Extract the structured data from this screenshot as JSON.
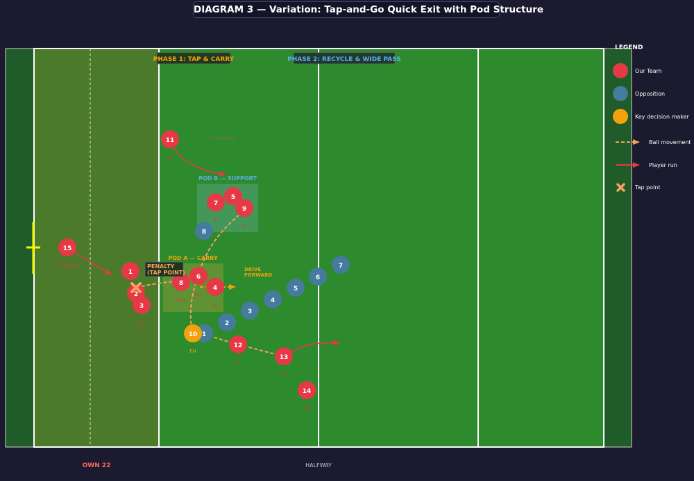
{
  "title": "DIAGRAM 3 — Variation: Tap-and-Go Quick Exit with Pod Structure",
  "phase_labels": {
    "phase1": "PHASE 1: TAP & CARRY",
    "phase2": "PHASE 2: RECYCLE & WIDE PASS"
  },
  "field_labels": {
    "own22": "OWN 22",
    "halfway": "HALFWAY"
  },
  "pod_labels": {
    "pod_a": "POD A — CARRY",
    "pod_b": "POD B — SUPPORT"
  },
  "annotations": {
    "penalty_line1": "PENALTY",
    "penalty_line2": "(TAP POINT)",
    "drive_line1": "DRIVE",
    "drive_line2": "FORWARD"
  },
  "legend": {
    "title": "LEGEND",
    "our_team": "Our Team",
    "opposition": "Opposition",
    "key_decision": "Key decision maker",
    "ball_movement": "Ball movement",
    "player_run": "Player run",
    "tap_point": "Tap point"
  },
  "colors": {
    "our_team": "#e63946",
    "opposition": "#457b9d",
    "key": "#f4a20c",
    "ball": "#f4a261",
    "field": "#2d8a2d",
    "own22_zone": "#4a7a2a",
    "ingoal": "#1f5c29",
    "background": "#1b1a2e"
  },
  "our_players": [
    {
      "num": "1",
      "role": ""
    },
    {
      "num": "2",
      "role": ""
    },
    {
      "num": "3",
      "role": "THP"
    },
    {
      "num": "4",
      "role": "LL"
    },
    {
      "num": "5",
      "role": ""
    },
    {
      "num": "6",
      "role": "BFL"
    },
    {
      "num": "7",
      "role": "OF"
    },
    {
      "num": "8",
      "role": "NO8"
    },
    {
      "num": "9",
      "role": "SH"
    },
    {
      "num": "11",
      "role": "LW"
    },
    {
      "num": "12",
      "role": "IC"
    },
    {
      "num": "13",
      "role": "OC"
    },
    {
      "num": "14",
      "role": "RW"
    },
    {
      "num": "15",
      "role": "FB (SWEEP)"
    }
  ],
  "key_player": {
    "num": "10",
    "role": "FH"
  },
  "opposition_players": [
    "1",
    "2",
    "3",
    "4",
    "5",
    "6",
    "7",
    "8"
  ],
  "faint_note": "HOLD SPACE"
}
